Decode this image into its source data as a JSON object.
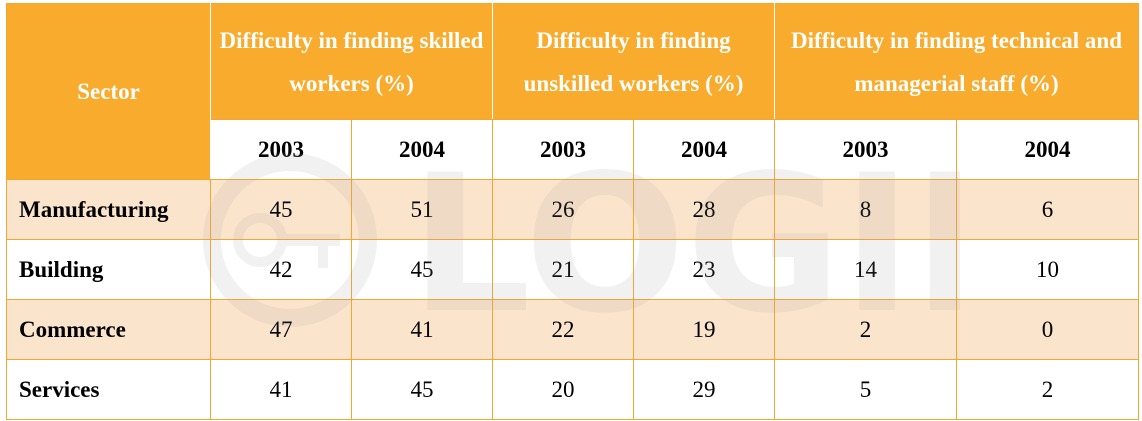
{
  "chart_data": {
    "type": "table",
    "header": {
      "sector": "Sector",
      "groups": [
        "Difficulty in finding skilled workers (%)",
        "Difficulty in finding unskilled workers (%)",
        "Difficulty in finding technical and managerial staff (%)"
      ],
      "years": [
        "2003",
        "2004",
        "2003",
        "2004",
        "2003",
        "2004"
      ]
    },
    "rows": [
      {
        "sector": "Manufacturing",
        "values": [
          "45",
          "51",
          "26",
          "28",
          "8",
          "6"
        ]
      },
      {
        "sector": "Building",
        "values": [
          "42",
          "45",
          "21",
          "23",
          "14",
          "10"
        ]
      },
      {
        "sector": "Commerce",
        "values": [
          "47",
          "41",
          "22",
          "19",
          "2",
          "0"
        ]
      },
      {
        "sector": "Services",
        "values": [
          "41",
          "45",
          "20",
          "29",
          "5",
          "2"
        ]
      }
    ]
  },
  "watermark": {
    "text": "LOGIN",
    "color": "#9a9a9a"
  },
  "colors": {
    "header": "#f9ab2d",
    "row_shade": "#fbe4cc",
    "border": "#f3a733"
  }
}
